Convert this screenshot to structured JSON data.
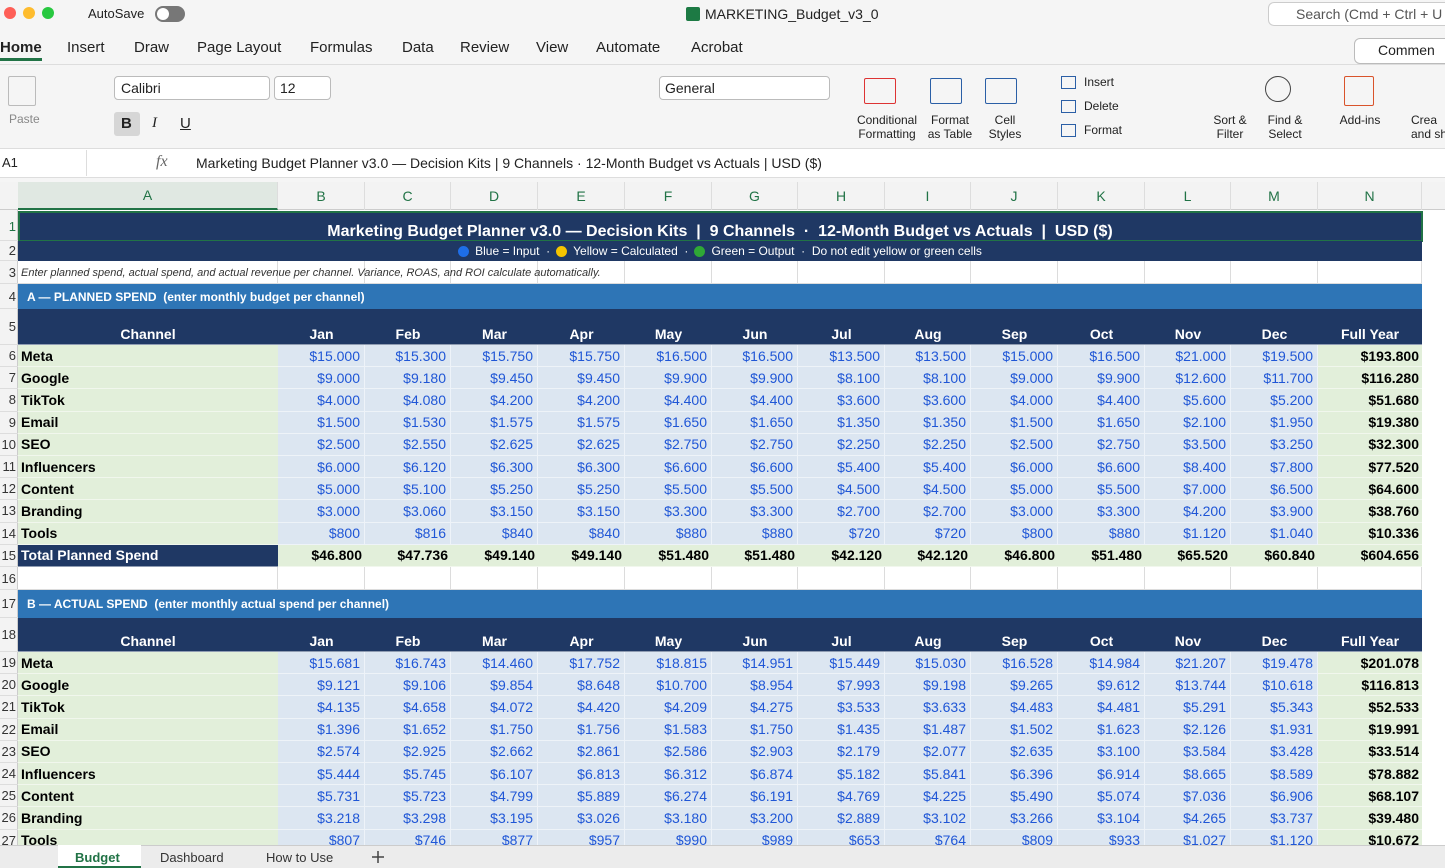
{
  "titlebar": {
    "autosave": "AutoSave",
    "filename": "MARKETING_Budget_v3_0",
    "search": "Search (Cmd + Ctrl + U"
  },
  "ribbon": {
    "tabs": [
      "Home",
      "Insert",
      "Draw",
      "Page Layout",
      "Formulas",
      "Data",
      "Review",
      "View",
      "Automate",
      "Acrobat"
    ],
    "comments": "Commen",
    "paste": "Paste",
    "font": "Calibri",
    "size": "12",
    "format_buttons": [
      "B",
      "I",
      "U"
    ],
    "number_format": "General",
    "tools": [
      [
        "Conditional",
        "Formatting"
      ],
      [
        "Format",
        "as Table"
      ],
      [
        "Cell",
        "Styles"
      ]
    ],
    "cells_menu": [
      "Insert",
      "Delete",
      "Format"
    ],
    "editing": [
      [
        "Sort &",
        "Filter"
      ],
      [
        "Find &",
        "Select"
      ]
    ],
    "addins": "Add-ins",
    "create": [
      "Crea",
      "and sh"
    ]
  },
  "formula_bar": {
    "name_box": "A1",
    "fx": "fx"
  },
  "sheet": {
    "col_headers": [
      "A",
      "B",
      "C",
      "D",
      "E",
      "F",
      "G",
      "H",
      "I",
      "J",
      "K",
      "L",
      "M",
      "N"
    ],
    "row_numbers": [
      "1",
      "2",
      "3",
      "4",
      "5",
      "6",
      "7",
      "8",
      "9",
      "10",
      "11",
      "12",
      "13",
      "14",
      "15",
      "16",
      "17",
      "18",
      "19",
      "20",
      "21",
      "22",
      "23",
      "24",
      "25",
      "26",
      "27"
    ],
    "title": "Marketing Budget Planner v3.0 — Decision Kits  |  9 Channels  ·  12-Month Budget vs Actuals  |  USD ($)",
    "legend": [
      {
        "text": "Blue = Input  ·",
        "color": "#1e6ee8"
      },
      {
        "text": "Yellow = Calculated  ·",
        "color": "#f5c400"
      },
      {
        "text": "Green = Output  ·  Do not edit yellow or green cells",
        "color": "#2fa836"
      }
    ],
    "note": "Enter planned spend, actual spend, and actual revenue per channel. Variance, ROAS, and ROI calculate automatically.",
    "sections": [
      {
        "heading": "A — PLANNED SPEND  (enter monthly budget per channel)",
        "header": [
          "Channel",
          "Jan",
          "Feb",
          "Mar",
          "Apr",
          "May",
          "Jun",
          "Jul",
          "Aug",
          "Sep",
          "Oct",
          "Nov",
          "Dec",
          "Full Year"
        ],
        "rows": [
          [
            "Meta",
            "$15.000",
            "$15.300",
            "$15.750",
            "$15.750",
            "$16.500",
            "$16.500",
            "$13.500",
            "$13.500",
            "$15.000",
            "$16.500",
            "$21.000",
            "$19.500",
            "$193.800"
          ],
          [
            "Google",
            "$9.000",
            "$9.180",
            "$9.450",
            "$9.450",
            "$9.900",
            "$9.900",
            "$8.100",
            "$8.100",
            "$9.000",
            "$9.900",
            "$12.600",
            "$11.700",
            "$116.280"
          ],
          [
            "TikTok",
            "$4.000",
            "$4.080",
            "$4.200",
            "$4.200",
            "$4.400",
            "$4.400",
            "$3.600",
            "$3.600",
            "$4.000",
            "$4.400",
            "$5.600",
            "$5.200",
            "$51.680"
          ],
          [
            "Email",
            "$1.500",
            "$1.530",
            "$1.575",
            "$1.575",
            "$1.650",
            "$1.650",
            "$1.350",
            "$1.350",
            "$1.500",
            "$1.650",
            "$2.100",
            "$1.950",
            "$19.380"
          ],
          [
            "SEO",
            "$2.500",
            "$2.550",
            "$2.625",
            "$2.625",
            "$2.750",
            "$2.750",
            "$2.250",
            "$2.250",
            "$2.500",
            "$2.750",
            "$3.500",
            "$3.250",
            "$32.300"
          ],
          [
            "Influencers",
            "$6.000",
            "$6.120",
            "$6.300",
            "$6.300",
            "$6.600",
            "$6.600",
            "$5.400",
            "$5.400",
            "$6.000",
            "$6.600",
            "$8.400",
            "$7.800",
            "$77.520"
          ],
          [
            "Content",
            "$5.000",
            "$5.100",
            "$5.250",
            "$5.250",
            "$5.500",
            "$5.500",
            "$4.500",
            "$4.500",
            "$5.000",
            "$5.500",
            "$7.000",
            "$6.500",
            "$64.600"
          ],
          [
            "Branding",
            "$3.000",
            "$3.060",
            "$3.150",
            "$3.150",
            "$3.300",
            "$3.300",
            "$2.700",
            "$2.700",
            "$3.000",
            "$3.300",
            "$4.200",
            "$3.900",
            "$38.760"
          ],
          [
            "Tools",
            "$800",
            "$816",
            "$840",
            "$840",
            "$880",
            "$880",
            "$720",
            "$720",
            "$800",
            "$880",
            "$1.120",
            "$1.040",
            "$10.336"
          ]
        ],
        "total": [
          "Total Planned Spend",
          "$46.800",
          "$47.736",
          "$49.140",
          "$49.140",
          "$51.480",
          "$51.480",
          "$42.120",
          "$42.120",
          "$46.800",
          "$51.480",
          "$65.520",
          "$60.840",
          "$604.656"
        ]
      },
      {
        "heading": "B — ACTUAL SPEND  (enter monthly actual spend per channel)",
        "header": [
          "Channel",
          "Jan",
          "Feb",
          "Mar",
          "Apr",
          "May",
          "Jun",
          "Jul",
          "Aug",
          "Sep",
          "Oct",
          "Nov",
          "Dec",
          "Full Year"
        ],
        "rows": [
          [
            "Meta",
            "$15.681",
            "$16.743",
            "$14.460",
            "$17.752",
            "$18.815",
            "$14.951",
            "$15.449",
            "$15.030",
            "$16.528",
            "$14.984",
            "$21.207",
            "$19.478",
            "$201.078"
          ],
          [
            "Google",
            "$9.121",
            "$9.106",
            "$9.854",
            "$8.648",
            "$10.700",
            "$8.954",
            "$7.993",
            "$9.198",
            "$9.265",
            "$9.612",
            "$13.744",
            "$10.618",
            "$116.813"
          ],
          [
            "TikTok",
            "$4.135",
            "$4.658",
            "$4.072",
            "$4.420",
            "$4.209",
            "$4.275",
            "$3.533",
            "$3.633",
            "$4.483",
            "$4.481",
            "$5.291",
            "$5.343",
            "$52.533"
          ],
          [
            "Email",
            "$1.396",
            "$1.652",
            "$1.750",
            "$1.756",
            "$1.583",
            "$1.750",
            "$1.435",
            "$1.487",
            "$1.502",
            "$1.623",
            "$2.126",
            "$1.931",
            "$19.991"
          ],
          [
            "SEO",
            "$2.574",
            "$2.925",
            "$2.662",
            "$2.861",
            "$2.586",
            "$2.903",
            "$2.179",
            "$2.077",
            "$2.635",
            "$3.100",
            "$3.584",
            "$3.428",
            "$33.514"
          ],
          [
            "Influencers",
            "$5.444",
            "$5.745",
            "$6.107",
            "$6.813",
            "$6.312",
            "$6.874",
            "$5.182",
            "$5.841",
            "$6.396",
            "$6.914",
            "$8.665",
            "$8.589",
            "$78.882"
          ],
          [
            "Content",
            "$5.731",
            "$5.723",
            "$4.799",
            "$5.889",
            "$6.274",
            "$6.191",
            "$4.769",
            "$4.225",
            "$5.490",
            "$5.074",
            "$7.036",
            "$6.906",
            "$68.107"
          ],
          [
            "Branding",
            "$3.218",
            "$3.298",
            "$3.195",
            "$3.026",
            "$3.180",
            "$3.200",
            "$2.889",
            "$3.102",
            "$3.266",
            "$3.104",
            "$4.265",
            "$3.737",
            "$39.480"
          ],
          [
            "Tools",
            "$807",
            "$746",
            "$877",
            "$957",
            "$990",
            "$989",
            "$653",
            "$764",
            "$809",
            "$933",
            "$1.027",
            "$1.120",
            "$10.672"
          ]
        ]
      }
    ]
  },
  "sheet_tabs": [
    "Budget",
    "Dashboard",
    "How to Use"
  ]
}
